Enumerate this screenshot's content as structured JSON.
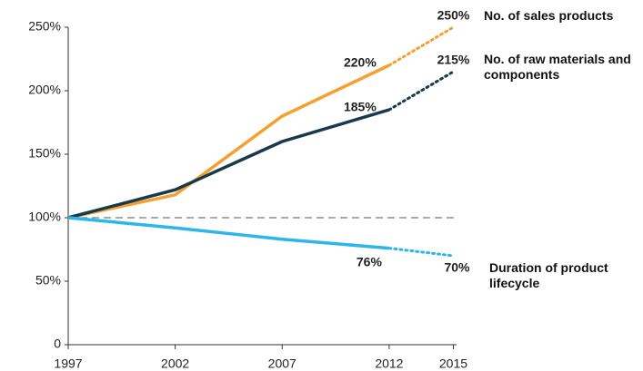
{
  "chart_data": {
    "type": "line",
    "x": [
      1997,
      2002,
      2007,
      2012,
      2015
    ],
    "xlim": [
      1997,
      2016
    ],
    "xticks": [
      1997,
      2002,
      2007,
      2012,
      2015
    ],
    "ylim": [
      0,
      250
    ],
    "yticks": [
      0,
      {
        "value": 50,
        "label": "50%"
      },
      {
        "value": 100,
        "label": "100%"
      },
      {
        "value": 150,
        "label": "150%"
      },
      {
        "value": 200,
        "label": "200%"
      },
      {
        "value": 250,
        "label": "250%"
      }
    ],
    "reference_line": 100,
    "projection_start": 2012,
    "series": [
      {
        "name": "No. of sales products",
        "color": "#f5a031",
        "values": [
          100,
          118,
          180,
          220,
          250
        ],
        "value_labels": [
          null,
          null,
          null,
          "220%",
          "250%"
        ]
      },
      {
        "name": "No. of raw materials and components",
        "color": "#183a4c",
        "values": [
          100,
          122,
          160,
          185,
          215
        ],
        "value_labels": [
          null,
          null,
          null,
          "185%",
          "215%"
        ]
      },
      {
        "name": "Duration of product lifecycle",
        "color": "#2cb6ea",
        "values": [
          100,
          92,
          83,
          76,
          70
        ],
        "value_labels": [
          null,
          null,
          null,
          "76%",
          "70%"
        ]
      }
    ]
  }
}
